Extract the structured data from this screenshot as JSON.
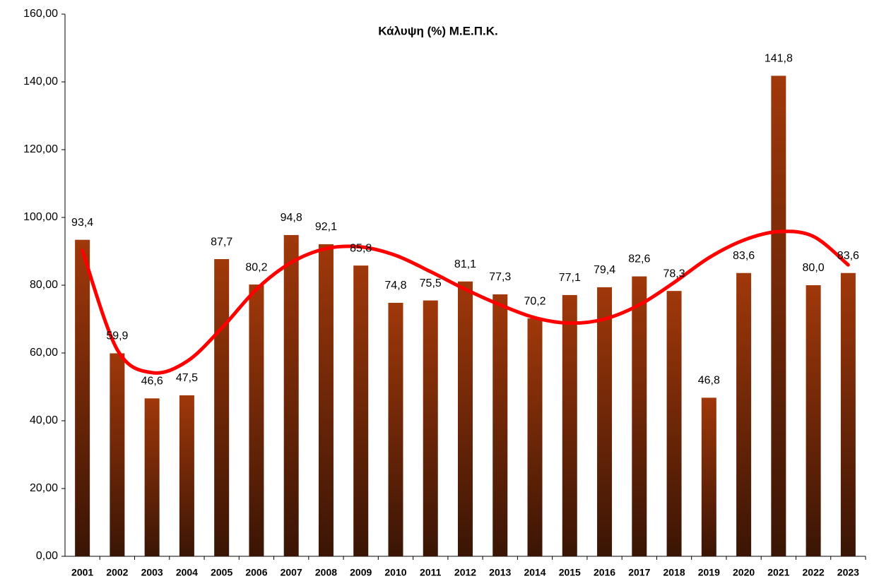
{
  "chart_data": {
    "type": "bar",
    "title": "Κάλυψη (%) Μ.Ε.Π.Κ.",
    "categories": [
      "2001",
      "2002",
      "2003",
      "2004",
      "2005",
      "2006",
      "2007",
      "2008",
      "2009",
      "2010",
      "2011",
      "2012",
      "2013",
      "2014",
      "2015",
      "2016",
      "2017",
      "2018",
      "2019",
      "2020",
      "2021",
      "2022",
      "2023"
    ],
    "values": [
      93.4,
      59.9,
      46.6,
      47.5,
      87.7,
      80.2,
      94.8,
      92.1,
      85.8,
      74.8,
      75.5,
      81.1,
      77.3,
      70.2,
      77.1,
      79.4,
      82.6,
      78.3,
      46.8,
      83.6,
      141.8,
      80.0,
      83.6
    ],
    "value_labels": [
      "93,4",
      "59,9",
      "46,6",
      "47,5",
      "87,7",
      "80,2",
      "94,8",
      "92,1",
      "85,8",
      "74,8",
      "75,5",
      "81,1",
      "77,3",
      "70,2",
      "77,1",
      "79,4",
      "82,6",
      "78,3",
      "46,8",
      "83,6",
      "141,8",
      "80,0",
      "83,6"
    ],
    "gradient": [
      "#a0380a",
      "#3a1505"
    ],
    "trend": {
      "color": "#ff0000",
      "values": [
        90.2,
        61,
        54.2,
        57.5,
        67.3,
        78.8,
        86.7,
        90.8,
        91.3,
        88.8,
        84,
        78.8,
        74.2,
        70.4,
        68.8,
        70,
        74.2,
        80.8,
        88.1,
        93.3,
        95.8,
        94.4,
        86
      ]
    },
    "ylim": [
      0,
      160
    ],
    "yticks": [
      {
        "value": 0,
        "label": "0,00"
      },
      {
        "value": 20,
        "label": "20,00"
      },
      {
        "value": 40,
        "label": "40,00"
      },
      {
        "value": 60,
        "label": "60,00"
      },
      {
        "value": 80,
        "label": "80,00"
      },
      {
        "value": 100,
        "label": "100,00"
      },
      {
        "value": 120,
        "label": "120,00"
      },
      {
        "value": 140,
        "label": "140,00"
      },
      {
        "value": 160,
        "label": "160,00"
      }
    ],
    "grid": false
  }
}
